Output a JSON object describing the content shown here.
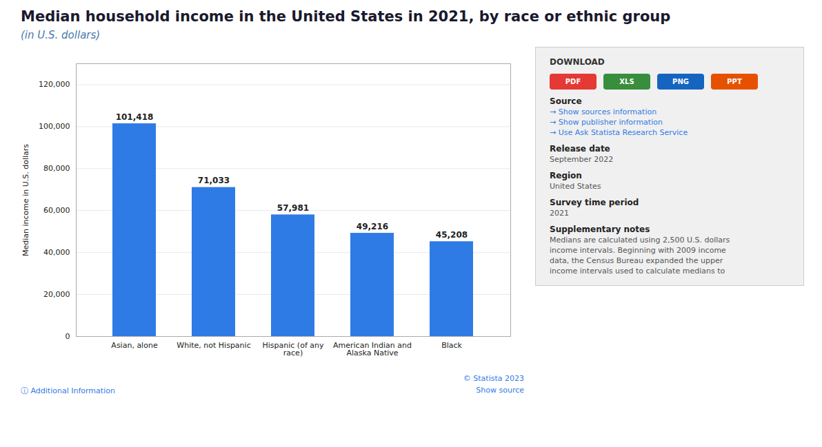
{
  "chart_data": {
    "type": "bar",
    "title": "Median household income in the United States in 2021, by race or ethnic group",
    "subtitle": "(in U.S. dollars)",
    "categories": [
      "Asian, alone",
      "White, not Hispanic",
      "Hispanic (of any\nrace)",
      "American Indian and\nAlaska Native",
      "Black"
    ],
    "values": [
      101418,
      71033,
      57981,
      49216,
      45208
    ],
    "value_labels": [
      "101,418",
      "71,033",
      "57,981",
      "49,216",
      "45,208"
    ],
    "data_labels": true,
    "color": "#2f7be5",
    "ylabel": "Median income in U.S. dollars",
    "ylim": [
      0,
      130000
    ],
    "yticks": [
      0,
      {
        "value": 20000,
        "label": "20,000"
      },
      {
        "value": 40000,
        "label": "40,000"
      },
      {
        "value": 60000,
        "label": "60,000"
      },
      {
        "value": 80000,
        "label": "80,000"
      },
      {
        "value": 100000,
        "label": "100,000"
      },
      {
        "value": 120000,
        "label": "120,000"
      }
    ],
    "grid": true,
    "annotations": {
      "footer_left": [
        "ⓘ Additional Information"
      ],
      "footer_right": [
        "© Statista 2023",
        "Show source"
      ],
      "download": {
        "heading": "DOWNLOAD",
        "buttons": [
          {
            "text": "PDF",
            "color": "#e53935"
          },
          {
            "text": "XLS",
            "color": "#388e3c"
          },
          {
            "text": "PNG",
            "color": "#1565c0"
          },
          {
            "text": "PPT",
            "color": "#e65100"
          }
        ]
      },
      "sections": [
        {
          "heading": "Source",
          "links": [
            "→ Show sources information",
            "→ Show publisher information",
            "→ Use Ask Statista Research Service"
          ]
        },
        {
          "heading": "Release date",
          "lines": [
            "September 2022"
          ]
        },
        {
          "heading": "Region",
          "lines": [
            "United States"
          ]
        },
        {
          "heading": "Survey time period",
          "lines": [
            "2021"
          ]
        },
        {
          "heading": "Supplementary notes",
          "lines": [
            "Medians are calculated using 2,500 U.S. dollars",
            "income intervals. Beginning with 2009 income",
            "data, the Census Bureau expanded the upper",
            "income intervals used to calculate medians to"
          ]
        }
      ]
    }
  }
}
